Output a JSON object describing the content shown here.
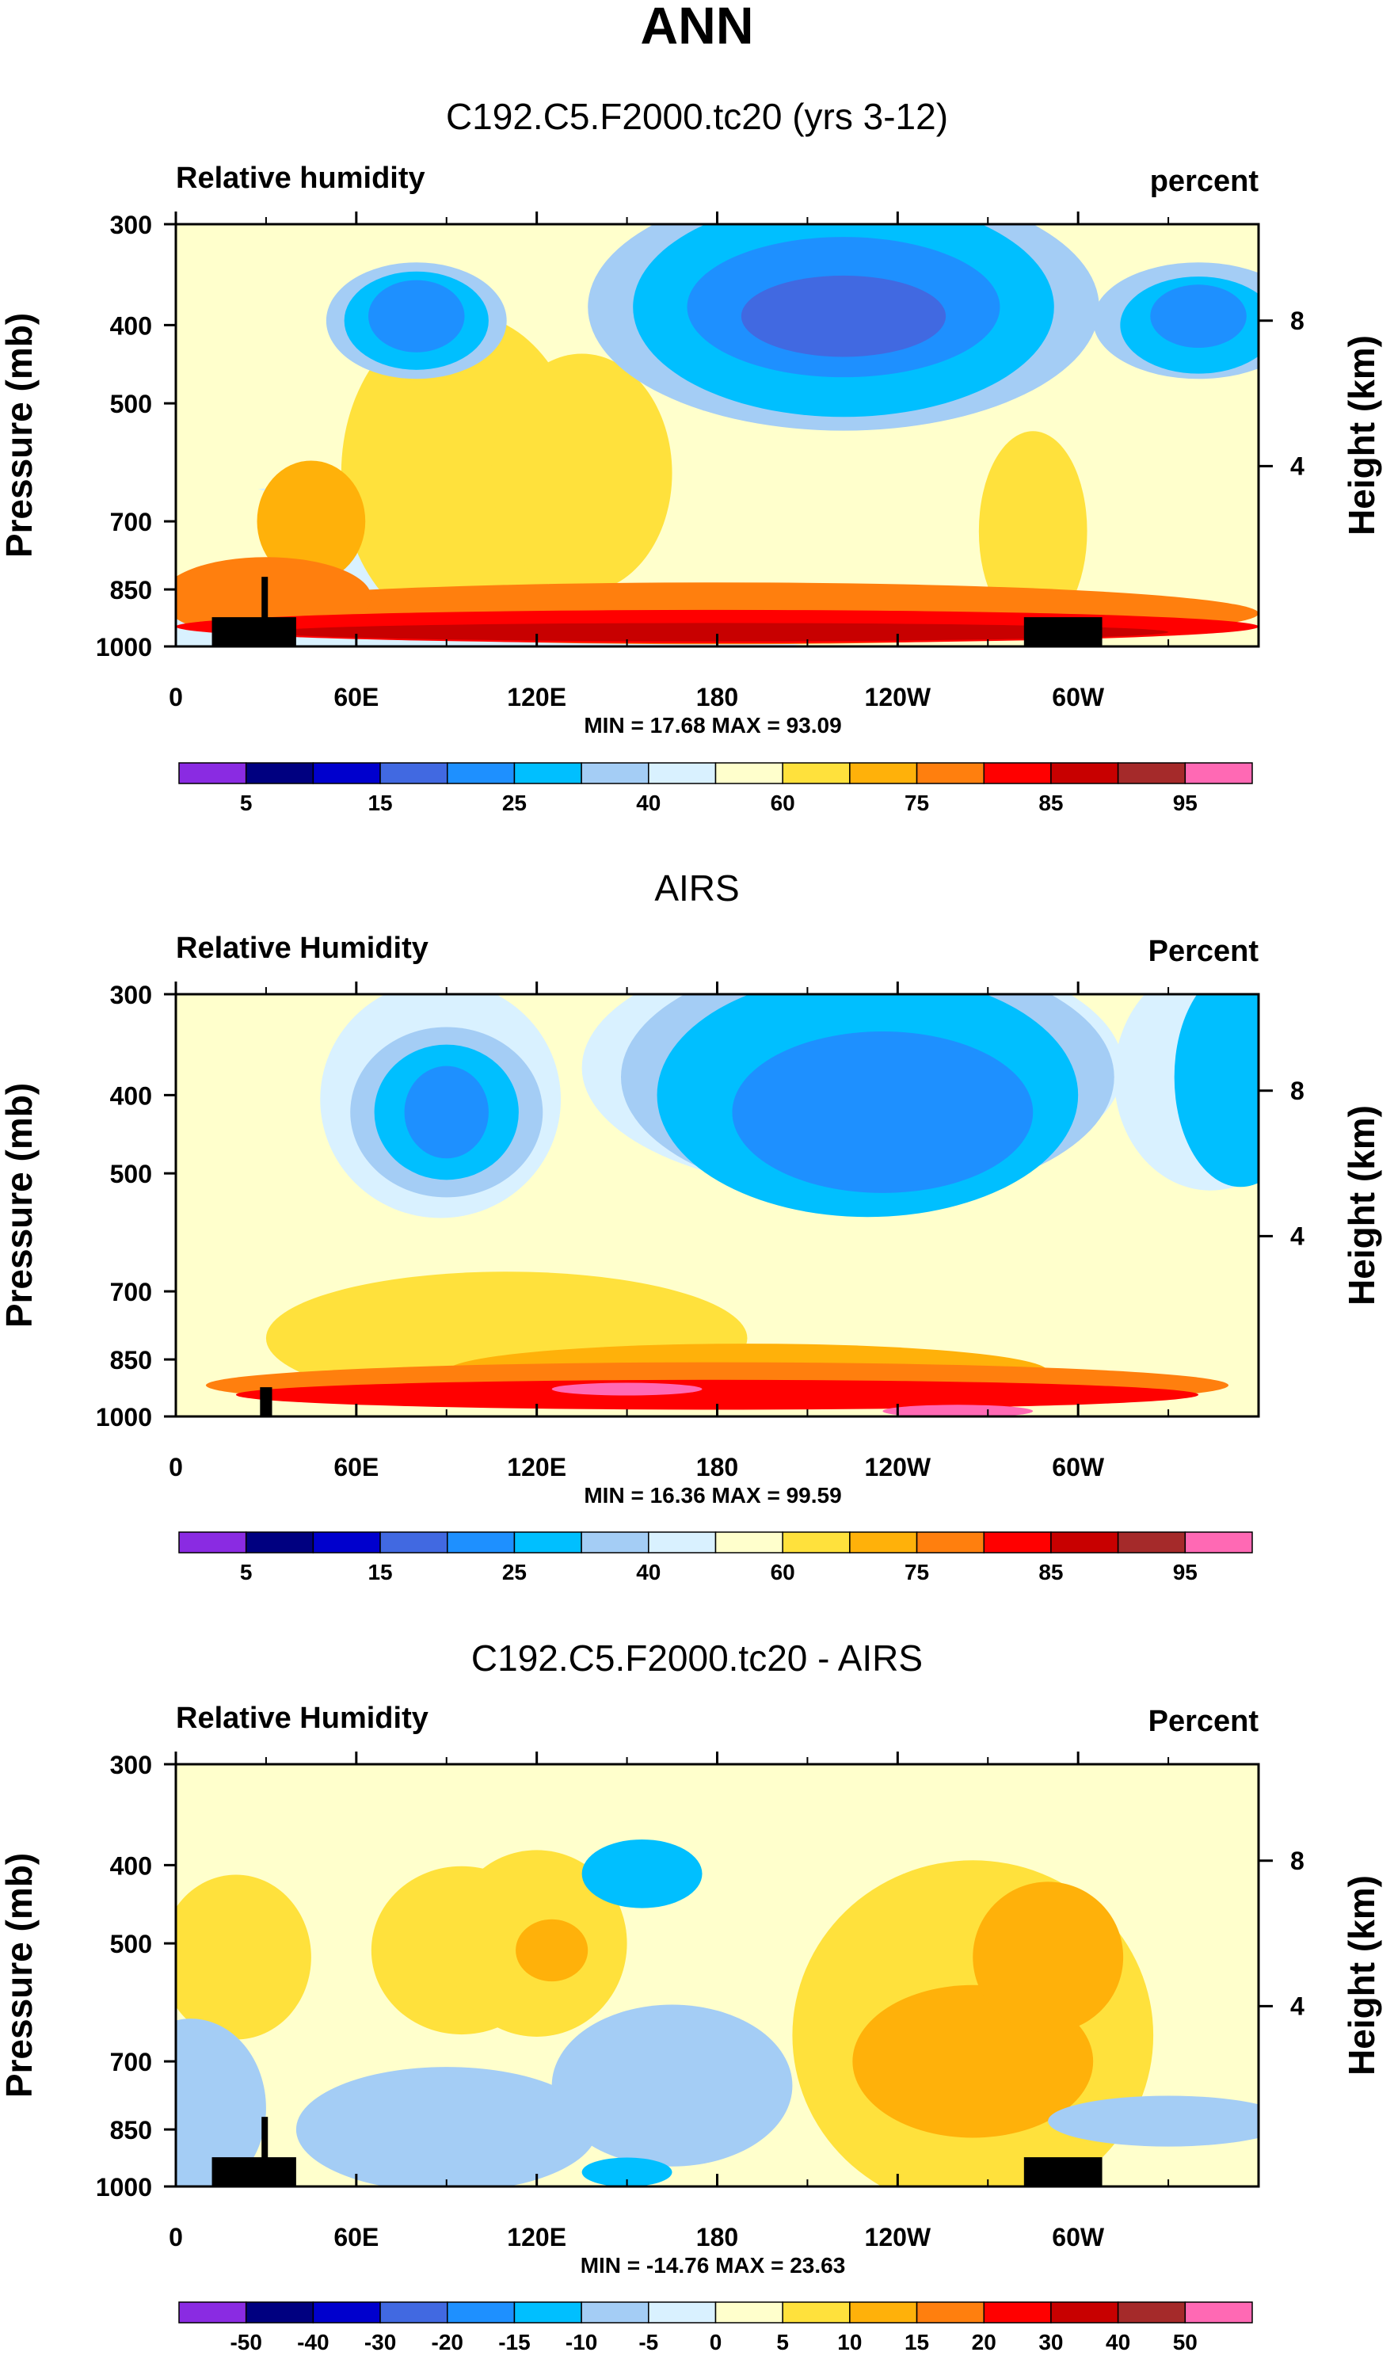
{
  "main_title": "ANN",
  "chart_data": [
    {
      "type": "contour",
      "title": "C192.C5.F2000.tc20 (yrs 3-12)",
      "left_label": "Relative humidity",
      "right_label": "percent",
      "ylabel": "Pressure (mb)",
      "y2label": "Height (km)",
      "xticks": [
        "0",
        "60E",
        "120E",
        "180",
        "120W",
        "60W"
      ],
      "yticks": [
        "300",
        "400",
        "500",
        "700",
        "850",
        "1000"
      ],
      "y2ticks": [
        "8",
        "4"
      ],
      "stats": "MIN = 17.68  MAX = 93.09",
      "colorbar": {
        "labels": [
          "5",
          "15",
          "25",
          "40",
          "60",
          "75",
          "85",
          "95"
        ],
        "colors": [
          "#8a2be2",
          "#000080",
          "#0000cd",
          "#4169e1",
          "#1e90ff",
          "#00bfff",
          "#a4cdf5",
          "#d9f1ff",
          "#ffffcc",
          "#ffe13c",
          "#ffb10a",
          "#ff7f0e",
          "#ff0000",
          "#c80000",
          "#a52a2a",
          "#ff69b4"
        ]
      },
      "domain": {
        "x": [
          0,
          360
        ],
        "p": [
          300,
          1000
        ]
      }
    },
    {
      "type": "contour",
      "title": "AIRS",
      "left_label": "Relative Humidity",
      "right_label": "Percent",
      "ylabel": "Pressure (mb)",
      "y2label": "Height (km)",
      "xticks": [
        "0",
        "60E",
        "120E",
        "180",
        "120W",
        "60W"
      ],
      "yticks": [
        "300",
        "400",
        "500",
        "700",
        "850",
        "1000"
      ],
      "y2ticks": [
        "8",
        "4"
      ],
      "stats": "MIN = 16.36  MAX = 99.59",
      "colorbar": {
        "labels": [
          "5",
          "15",
          "25",
          "40",
          "60",
          "75",
          "85",
          "95"
        ],
        "colors": [
          "#8a2be2",
          "#000080",
          "#0000cd",
          "#4169e1",
          "#1e90ff",
          "#00bfff",
          "#a4cdf5",
          "#d9f1ff",
          "#ffffcc",
          "#ffe13c",
          "#ffb10a",
          "#ff7f0e",
          "#ff0000",
          "#c80000",
          "#a52a2a",
          "#ff69b4"
        ]
      },
      "domain": {
        "x": [
          0,
          360
        ],
        "p": [
          300,
          1000
        ]
      }
    },
    {
      "type": "contour",
      "title": "C192.C5.F2000.tc20 - AIRS",
      "left_label": "Relative Humidity",
      "right_label": "Percent",
      "ylabel": "Pressure (mb)",
      "y2label": "Height (km)",
      "xticks": [
        "0",
        "60E",
        "120E",
        "180",
        "120W",
        "60W"
      ],
      "yticks": [
        "300",
        "400",
        "500",
        "700",
        "850",
        "1000"
      ],
      "y2ticks": [
        "8",
        "4"
      ],
      "stats": "MIN = -14.76  MAX = 23.63",
      "colorbar": {
        "labels": [
          "-50",
          "-40",
          "-30",
          "-20",
          "-15",
          "-10",
          "-5",
          "0",
          "5",
          "10",
          "15",
          "20",
          "30",
          "40",
          "50"
        ],
        "colors": [
          "#8a2be2",
          "#000080",
          "#0000cd",
          "#4169e1",
          "#1e90ff",
          "#00bfff",
          "#a4cdf5",
          "#d9f1ff",
          "#ffffcc",
          "#ffe13c",
          "#ffb10a",
          "#ff7f0e",
          "#ff0000",
          "#c80000",
          "#a52a2a",
          "#ff69b4"
        ]
      },
      "domain": {
        "x": [
          0,
          360
        ],
        "p": [
          300,
          1000
        ]
      }
    }
  ]
}
